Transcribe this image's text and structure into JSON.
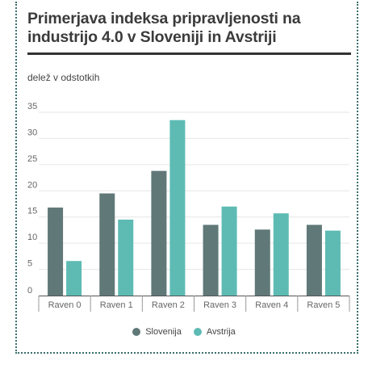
{
  "chart_data": {
    "type": "bar",
    "title": "Primerjava indeksa pripravljenosti na industrijo 4.0 v Sloveniji in Avstriji",
    "ylabel": "delež v odstotkih",
    "xlabel": "",
    "categories": [
      "Raven 0",
      "Raven 1",
      "Raven 2",
      "Raven 3",
      "Raven 4",
      "Raven 5"
    ],
    "series": [
      {
        "name": "Slovenija",
        "color": "#607878",
        "values": [
          16.8,
          19.5,
          23.8,
          13.5,
          12.6,
          13.5
        ]
      },
      {
        "name": "Avstrija",
        "color": "#5ebbb4",
        "values": [
          6.6,
          14.5,
          33.5,
          17.0,
          15.7,
          12.4
        ]
      }
    ],
    "yticks": [
      0,
      5,
      10,
      15,
      20,
      25,
      30,
      35
    ],
    "ylim": [
      0,
      35
    ],
    "grid": true,
    "legend": "bottom"
  }
}
